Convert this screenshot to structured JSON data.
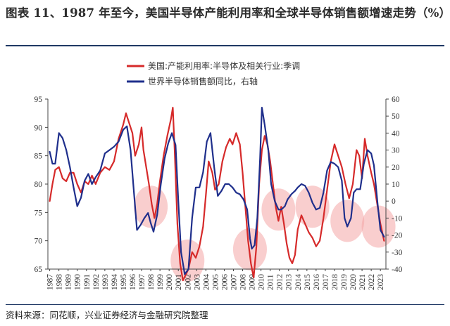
{
  "header": {
    "title": "图表 11、1987 年至今，美国半导体产能利用率和全球半导体销售额增速走势（%）"
  },
  "footer": {
    "source": "资料来源：同花顺，兴业证券经济与金融研究院整理"
  },
  "colors": {
    "utilization": "#d62a2a",
    "sales_growth": "#1f2f8c",
    "highlight": "#f4a6a6",
    "rule": "#1f3864"
  },
  "chart_data": {
    "type": "line",
    "title": "",
    "legend_position": "top-center",
    "grid": false,
    "x_tick_labels": [
      "1987",
      "1988",
      "1989",
      "1990",
      "1991",
      "1992",
      "1993",
      "1994",
      "1995",
      "1996",
      "1997",
      "1998",
      "1999",
      "2000",
      "2001",
      "2002",
      "2003",
      "2004",
      "2005",
      "2006",
      "2007",
      "2008",
      "2009",
      "2010",
      "2011",
      "2012",
      "2013",
      "2014",
      "2015",
      "2016",
      "2017",
      "2018",
      "2019",
      "2020",
      "2021",
      "2022",
      "2023"
    ],
    "xlim": [
      1986.8,
      2023.6
    ],
    "y_left": {
      "ticks": [
        65,
        70,
        75,
        80,
        85,
        90,
        95
      ],
      "lim": [
        65,
        95
      ]
    },
    "y_right": {
      "ticks": [
        -40,
        -30,
        -20,
        -10,
        0,
        10,
        20,
        30,
        40,
        50,
        60
      ],
      "lim": [
        -40,
        60
      ]
    },
    "series": [
      {
        "name": "美国:产能利用率:半导体及相关行业:季调",
        "axis": "left",
        "points": [
          [
            1987.0,
            77.0
          ],
          [
            1987.3,
            80.0
          ],
          [
            1987.6,
            82.5
          ],
          [
            1988.0,
            83.0
          ],
          [
            1988.4,
            81.0
          ],
          [
            1988.8,
            80.5
          ],
          [
            1989.2,
            82.0
          ],
          [
            1989.6,
            82.0
          ],
          [
            1990.0,
            80.0
          ],
          [
            1990.4,
            78.5
          ],
          [
            1990.8,
            80.5
          ],
          [
            1991.2,
            80.0
          ],
          [
            1991.6,
            81.5
          ],
          [
            1992.0,
            80.0
          ],
          [
            1992.5,
            82.0
          ],
          [
            1993.0,
            83.0
          ],
          [
            1993.5,
            82.5
          ],
          [
            1994.0,
            84.0
          ],
          [
            1994.5,
            88.0
          ],
          [
            1995.0,
            90.5
          ],
          [
            1995.3,
            92.5
          ],
          [
            1995.6,
            91.0
          ],
          [
            1996.0,
            89.0
          ],
          [
            1996.3,
            85.0
          ],
          [
            1996.7,
            87.0
          ],
          [
            1997.0,
            90.0
          ],
          [
            1997.2,
            86.0
          ],
          [
            1997.5,
            83.0
          ],
          [
            1997.8,
            80.0
          ],
          [
            1998.1,
            76.5
          ],
          [
            1998.4,
            74.0
          ],
          [
            1998.7,
            76.5
          ],
          [
            1999.0,
            80.5
          ],
          [
            1999.4,
            85.0
          ],
          [
            1999.8,
            88.5
          ],
          [
            2000.2,
            91.5
          ],
          [
            2000.4,
            93.5
          ],
          [
            2000.6,
            86.0
          ],
          [
            2000.9,
            73.0
          ],
          [
            2001.2,
            66.0
          ],
          [
            2001.5,
            63.0
          ],
          [
            2001.8,
            64.0
          ],
          [
            2002.1,
            65.0
          ],
          [
            2002.5,
            68.0
          ],
          [
            2002.9,
            67.0
          ],
          [
            2003.3,
            69.0
          ],
          [
            2003.7,
            72.5
          ],
          [
            2004.0,
            78.0
          ],
          [
            2004.3,
            84.0
          ],
          [
            2004.7,
            82.0
          ],
          [
            2005.0,
            79.0
          ],
          [
            2005.4,
            80.0
          ],
          [
            2005.8,
            84.0
          ],
          [
            2006.2,
            86.5
          ],
          [
            2006.6,
            88.0
          ],
          [
            2006.9,
            87.0
          ],
          [
            2007.3,
            89.0
          ],
          [
            2007.7,
            87.0
          ],
          [
            2008.0,
            82.0
          ],
          [
            2008.3,
            76.0
          ],
          [
            2008.6,
            70.0
          ],
          [
            2008.9,
            66.0
          ],
          [
            2009.2,
            63.5
          ],
          [
            2009.5,
            69.0
          ],
          [
            2009.8,
            80.0
          ],
          [
            2010.1,
            86.0
          ],
          [
            2010.4,
            88.5
          ],
          [
            2010.7,
            87.0
          ],
          [
            2011.0,
            84.0
          ],
          [
            2011.3,
            80.0
          ],
          [
            2011.6,
            76.0
          ],
          [
            2011.9,
            73.5
          ],
          [
            2012.2,
            76.0
          ],
          [
            2012.5,
            73.0
          ],
          [
            2012.8,
            69.5
          ],
          [
            2013.1,
            67.0
          ],
          [
            2013.4,
            66.0
          ],
          [
            2013.7,
            67.5
          ],
          [
            2014.0,
            72.0
          ],
          [
            2014.4,
            74.5
          ],
          [
            2014.8,
            73.0
          ],
          [
            2015.2,
            71.5
          ],
          [
            2015.6,
            70.5
          ],
          [
            2016.0,
            69.0
          ],
          [
            2016.4,
            70.0
          ],
          [
            2016.8,
            74.0
          ],
          [
            2017.2,
            79.0
          ],
          [
            2017.6,
            84.0
          ],
          [
            2018.0,
            87.0
          ],
          [
            2018.4,
            85.0
          ],
          [
            2018.8,
            83.0
          ],
          [
            2019.2,
            80.0
          ],
          [
            2019.6,
            77.5
          ],
          [
            2020.0,
            80.0
          ],
          [
            2020.4,
            86.0
          ],
          [
            2020.7,
            85.0
          ],
          [
            2021.0,
            81.0
          ],
          [
            2021.3,
            88.0
          ],
          [
            2021.6,
            85.0
          ],
          [
            2022.0,
            82.0
          ],
          [
            2022.3,
            80.0
          ],
          [
            2022.7,
            76.0
          ],
          [
            2023.0,
            73.0
          ],
          [
            2023.4,
            70.0
          ]
        ]
      },
      {
        "name": "世界半导体销售额同比，右轴",
        "axis": "right",
        "points": [
          [
            1987.0,
            29.0
          ],
          [
            1987.3,
            22.0
          ],
          [
            1987.6,
            22.0
          ],
          [
            1988.0,
            40.0
          ],
          [
            1988.4,
            37.0
          ],
          [
            1988.8,
            30.0
          ],
          [
            1989.2,
            20.0
          ],
          [
            1989.6,
            8.0
          ],
          [
            1990.0,
            -3.0
          ],
          [
            1990.4,
            2.0
          ],
          [
            1990.8,
            12.0
          ],
          [
            1991.2,
            16.0
          ],
          [
            1991.6,
            10.0
          ],
          [
            1992.0,
            14.0
          ],
          [
            1992.5,
            18.0
          ],
          [
            1993.0,
            28.0
          ],
          [
            1993.5,
            30.0
          ],
          [
            1994.0,
            32.0
          ],
          [
            1994.5,
            35.0
          ],
          [
            1995.0,
            42.0
          ],
          [
            1995.4,
            44.0
          ],
          [
            1995.8,
            30.0
          ],
          [
            1996.2,
            3.0
          ],
          [
            1996.5,
            -17.0
          ],
          [
            1996.9,
            -14.0
          ],
          [
            1997.3,
            -10.0
          ],
          [
            1997.7,
            -7.0
          ],
          [
            1998.0,
            -13.0
          ],
          [
            1998.3,
            -18.0
          ],
          [
            1998.7,
            -8.0
          ],
          [
            1999.1,
            10.0
          ],
          [
            1999.5,
            25.0
          ],
          [
            1999.9,
            34.0
          ],
          [
            2000.3,
            40.0
          ],
          [
            2000.7,
            33.0
          ],
          [
            2001.0,
            0.0
          ],
          [
            2001.3,
            -30.0
          ],
          [
            2001.7,
            -43.0
          ],
          [
            2002.1,
            -40.0
          ],
          [
            2002.5,
            -10.0
          ],
          [
            2002.9,
            8.0
          ],
          [
            2003.3,
            8.0
          ],
          [
            2003.7,
            17.0
          ],
          [
            2004.1,
            35.0
          ],
          [
            2004.5,
            40.0
          ],
          [
            2004.9,
            20.0
          ],
          [
            2005.3,
            3.0
          ],
          [
            2005.7,
            6.0
          ],
          [
            2006.1,
            10.0
          ],
          [
            2006.5,
            10.0
          ],
          [
            2006.9,
            8.0
          ],
          [
            2007.3,
            5.0
          ],
          [
            2007.7,
            4.0
          ],
          [
            2008.1,
            1.0
          ],
          [
            2008.5,
            -5.0
          ],
          [
            2008.8,
            -22.0
          ],
          [
            2009.0,
            -28.0
          ],
          [
            2009.3,
            -26.0
          ],
          [
            2009.6,
            -10.0
          ],
          [
            2009.9,
            25.0
          ],
          [
            2010.1,
            55.0
          ],
          [
            2010.4,
            45.0
          ],
          [
            2010.8,
            30.0
          ],
          [
            2011.1,
            10.0
          ],
          [
            2011.5,
            0.0
          ],
          [
            2011.9,
            -5.0
          ],
          [
            2012.2,
            -5.0
          ],
          [
            2012.6,
            -3.0
          ],
          [
            2012.9,
            1.0
          ],
          [
            2013.3,
            4.0
          ],
          [
            2013.7,
            6.0
          ],
          [
            2014.0,
            8.0
          ],
          [
            2014.4,
            10.0
          ],
          [
            2014.8,
            9.0
          ],
          [
            2015.2,
            5.0
          ],
          [
            2015.6,
            -1.0
          ],
          [
            2016.0,
            -5.0
          ],
          [
            2016.4,
            -4.0
          ],
          [
            2016.8,
            5.0
          ],
          [
            2017.2,
            18.0
          ],
          [
            2017.6,
            23.0
          ],
          [
            2018.0,
            22.0
          ],
          [
            2018.4,
            20.0
          ],
          [
            2018.8,
            12.0
          ],
          [
            2019.1,
            -10.0
          ],
          [
            2019.4,
            -15.0
          ],
          [
            2019.8,
            -10.0
          ],
          [
            2020.1,
            5.0
          ],
          [
            2020.4,
            7.0
          ],
          [
            2020.8,
            7.0
          ],
          [
            2021.2,
            22.0
          ],
          [
            2021.6,
            30.0
          ],
          [
            2022.0,
            28.0
          ],
          [
            2022.3,
            21.0
          ],
          [
            2022.7,
            -2.0
          ],
          [
            2023.0,
            -17.0
          ],
          [
            2023.4,
            -21.0
          ]
        ]
      }
    ],
    "highlight_regions": [
      {
        "year": 1998.0,
        "ylevel": 76
      },
      {
        "year": 2002.0,
        "ylevel": 66.5
      },
      {
        "year": 2008.8,
        "ylevel": 68.5
      },
      {
        "year": 2011.9,
        "ylevel": 75.5
      },
      {
        "year": 2015.6,
        "ylevel": 76
      },
      {
        "year": 2019.4,
        "ylevel": 73.5
      },
      {
        "year": 2022.8,
        "ylevel": 72.5
      }
    ]
  }
}
